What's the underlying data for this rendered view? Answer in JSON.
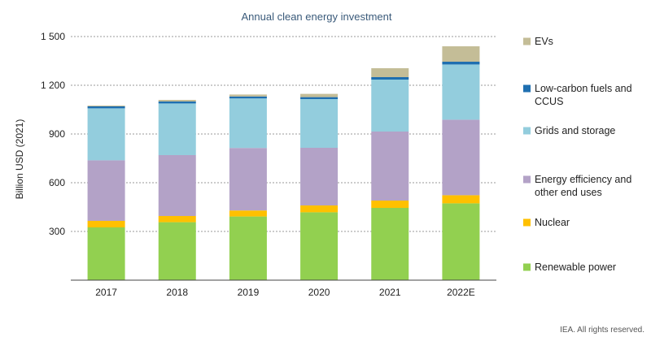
{
  "chart_data": {
    "type": "bar",
    "stacked": true,
    "title": "Annual clean energy investment",
    "ylabel": "Billion USD (2021)",
    "xlabel": "",
    "categories": [
      "2017",
      "2018",
      "2019",
      "2020",
      "2021",
      "2022E"
    ],
    "ylim": [
      0,
      1500
    ],
    "yticks": [
      300,
      600,
      900,
      1200,
      1500
    ],
    "ytick_labels": [
      "300",
      "600",
      "900",
      "1 200",
      "1 500"
    ],
    "grid": true,
    "legend_position": "right",
    "series": [
      {
        "name": "Renewable power",
        "color": "#92d050",
        "values": [
          325,
          357,
          392,
          418,
          445,
          473
        ]
      },
      {
        "name": "Nuclear",
        "color": "#ffc000",
        "values": [
          40,
          38,
          37,
          42,
          45,
          50
        ]
      },
      {
        "name": "Energy efficiency and other end uses",
        "color": "#b3a2c7",
        "values": [
          373,
          375,
          385,
          355,
          425,
          465
        ]
      },
      {
        "name": "Grids and storage",
        "color": "#93cddd",
        "values": [
          320,
          318,
          305,
          300,
          320,
          340
        ]
      },
      {
        "name": "Low-carbon fuels and CCUS",
        "color": "#1f6fb0",
        "values": [
          12,
          12,
          12,
          12,
          15,
          17
        ]
      },
      {
        "name": "EVs",
        "color": "#c4bd97",
        "values": [
          5,
          10,
          12,
          20,
          55,
          95
        ]
      }
    ]
  },
  "footer": "IEA. All rights reserved."
}
